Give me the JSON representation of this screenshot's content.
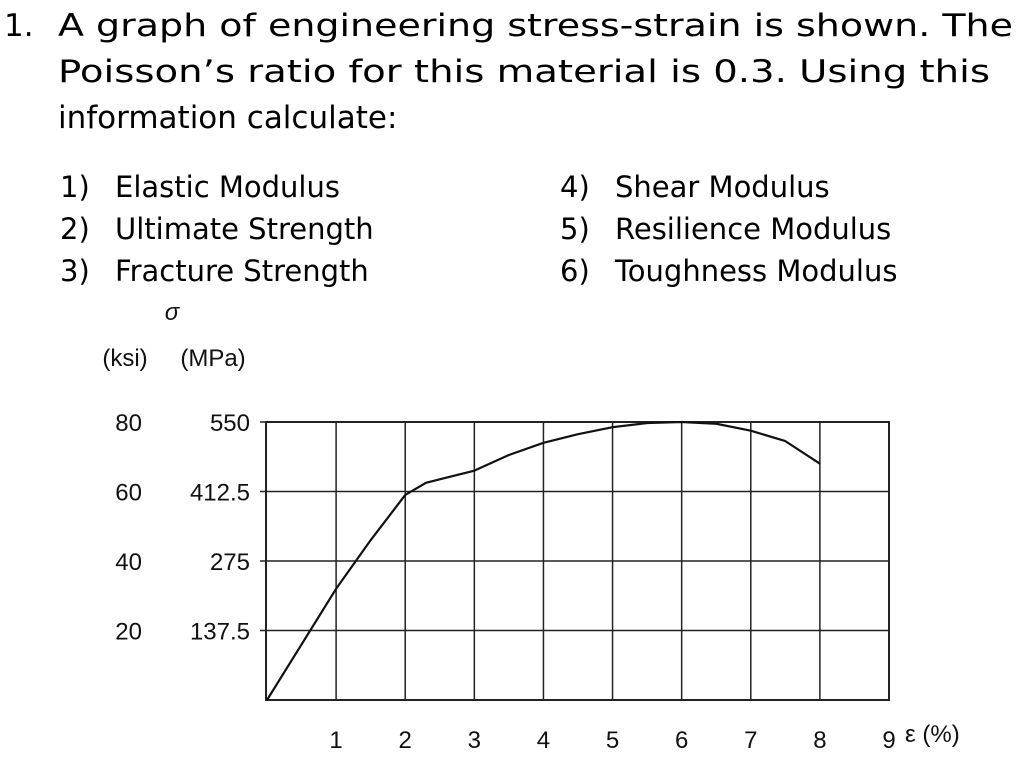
{
  "question": {
    "number": "1.",
    "lines": [
      "A graph of engineering stress-strain is shown. The",
      "Poisson’s ratio for this material is 0.3.  Using this",
      "information calculate:"
    ],
    "items": [
      {
        "number": "1)",
        "text": "Elastic Modulus"
      },
      {
        "number": "2)",
        "text": "Ultimate Strength"
      },
      {
        "number": "3)",
        "text": "Fracture Strength"
      },
      {
        "number": "4)",
        "text": "Shear Modulus"
      },
      {
        "number": "5)",
        "text": "Resilience Modulus"
      },
      {
        "number": "6)",
        "text": "Toughness Modulus"
      }
    ]
  },
  "chart_data": {
    "type": "line",
    "y_symbol": "σ",
    "y_label": "(ksi)",
    "y2_label": "(MPa)",
    "x_label": "ε (%)",
    "x": [
      0,
      0.5,
      1,
      1.5,
      2,
      2.3,
      2.6,
      3,
      3.5,
      4,
      4.5,
      5,
      5.5,
      6,
      6.5,
      7,
      7.5,
      8
    ],
    "series": [
      {
        "color": "#111111",
        "values": [
          0,
          16,
          32,
          46,
          59,
          62.5,
          64,
          66,
          70.5,
          74,
          76.5,
          78.5,
          79.7,
          80,
          79.5,
          77.5,
          74.5,
          68
        ]
      }
    ],
    "xlim": [
      0,
      9
    ],
    "xticks": [
      1,
      2,
      3,
      4,
      5,
      6,
      7,
      8,
      9
    ],
    "ylim": [
      0,
      80
    ],
    "yticks": [
      20,
      40,
      60,
      80
    ],
    "y2lim": [
      0,
      550
    ],
    "y2ticks": [
      137.5,
      275,
      412.5,
      550
    ],
    "grid": true
  }
}
